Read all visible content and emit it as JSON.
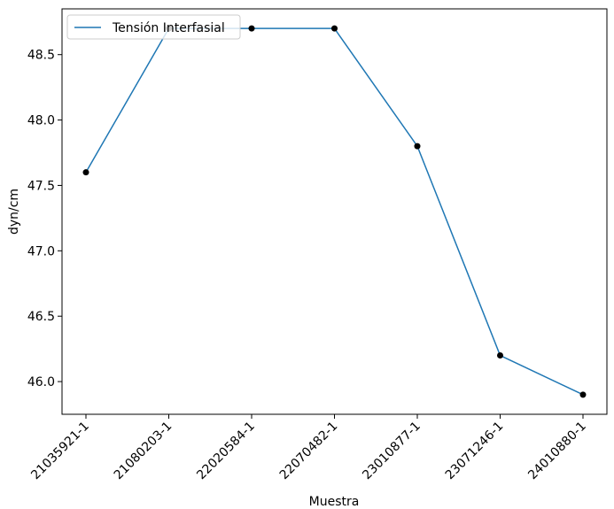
{
  "chart_data": {
    "type": "line",
    "categories": [
      "21035921-1",
      "21080203-1",
      "22020584-1",
      "22070482-1",
      "23010877-1",
      "23071246-1",
      "24010880-1"
    ],
    "series": [
      {
        "name": "Tensión Interfasial",
        "values": [
          47.6,
          48.7,
          48.7,
          48.7,
          47.8,
          46.2,
          45.9
        ],
        "line_color": "#1f77b4",
        "marker_color": "#000000"
      }
    ],
    "xlabel": "Muestra",
    "ylabel": "dyn/cm",
    "ylim": [
      45.75,
      48.85
    ],
    "yticks": [
      "46.0",
      "46.5",
      "47.0",
      "47.5",
      "48.0",
      "48.5"
    ],
    "ytick_values": [
      46.0,
      46.5,
      47.0,
      47.5,
      48.0,
      48.5
    ],
    "legend_position": "upper-left",
    "grid": false
  }
}
